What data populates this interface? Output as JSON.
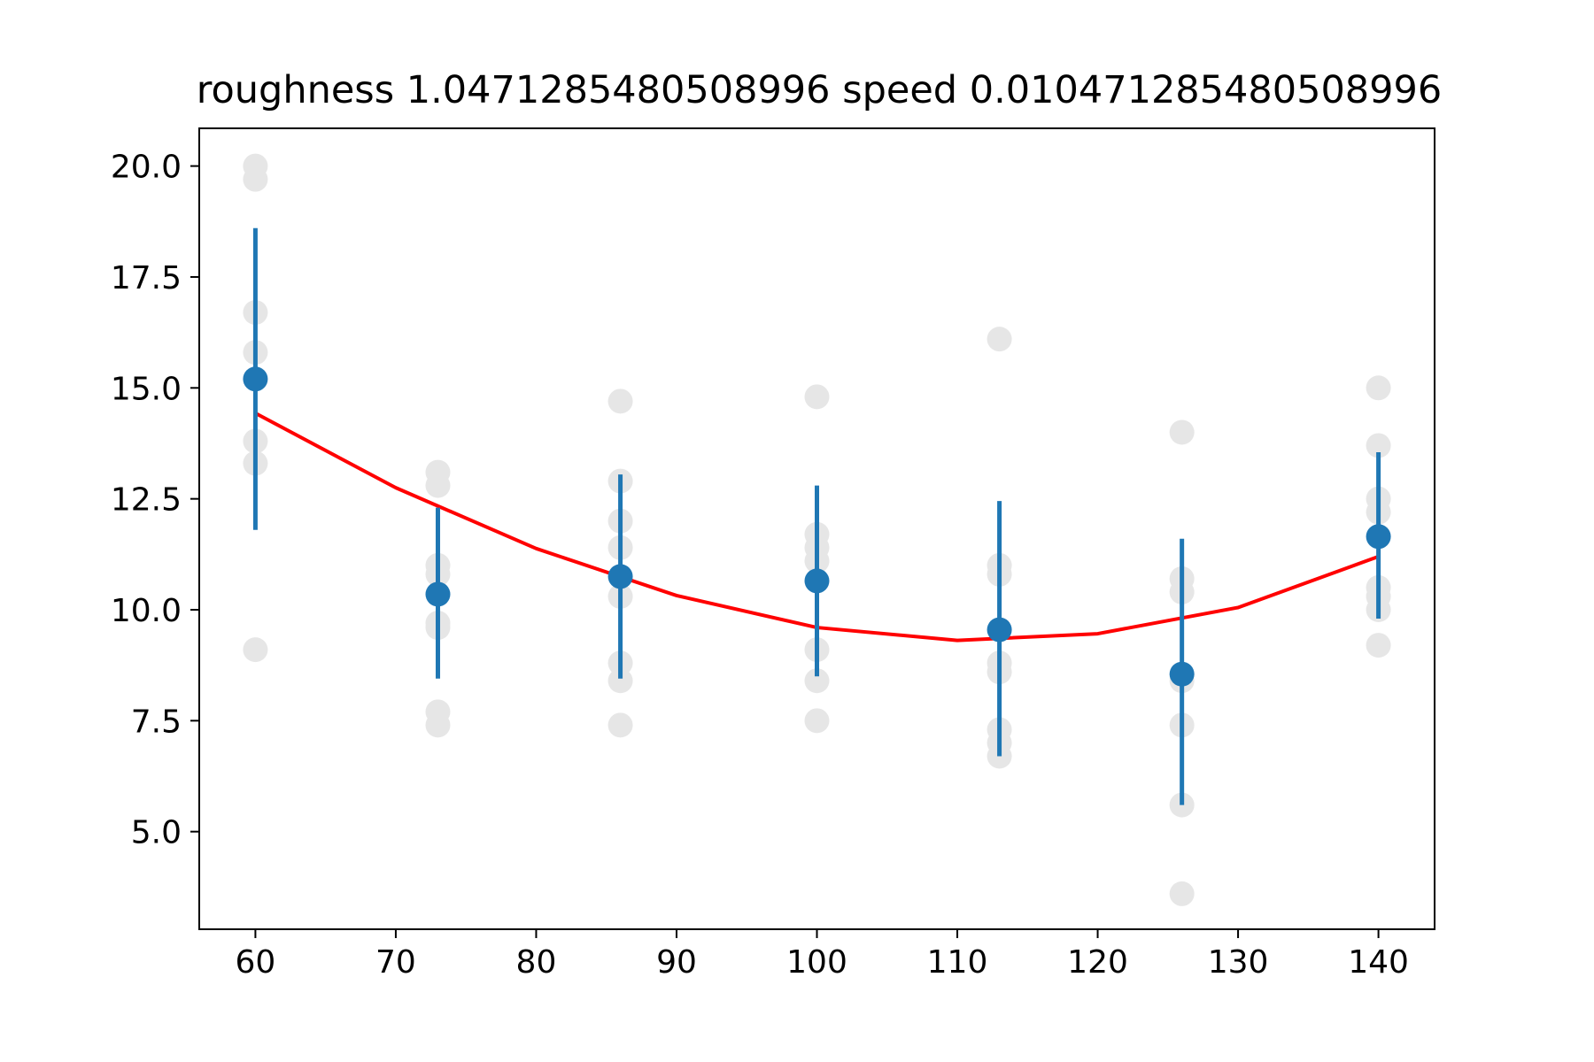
{
  "chart_data": {
    "type": "scatter",
    "title": "roughness 1.0471285480508996 speed 0.010471285480508996",
    "xlabel": "",
    "ylabel": "",
    "xlim": [
      56,
      144
    ],
    "ylim": [
      2.8,
      20.85
    ],
    "grid": false,
    "x_ticks": [
      60,
      70,
      80,
      90,
      100,
      110,
      120,
      130,
      140
    ],
    "x_tick_labels": [
      "60",
      "70",
      "80",
      "90",
      "100",
      "110",
      "120",
      "130",
      "140"
    ],
    "y_ticks": [
      5.0,
      7.5,
      10.0,
      12.5,
      15.0,
      17.5,
      20.0
    ],
    "y_tick_labels": [
      "5.0",
      "7.5",
      "10.0",
      "12.5",
      "15.0",
      "17.5",
      "20.0"
    ],
    "raw_points": {
      "color": "#e6e6e6",
      "groups": [
        {
          "x": 60,
          "y": [
            20.0,
            19.7,
            16.7,
            15.8,
            13.8,
            13.3,
            9.1
          ]
        },
        {
          "x": 73,
          "y": [
            13.1,
            12.8,
            11.0,
            10.8,
            9.7,
            9.6,
            7.7,
            7.4
          ]
        },
        {
          "x": 86,
          "y": [
            14.7,
            12.9,
            12.0,
            11.4,
            10.3,
            8.8,
            8.4,
            7.4
          ]
        },
        {
          "x": 100,
          "y": [
            14.8,
            11.7,
            11.4,
            11.1,
            9.1,
            8.4,
            7.5
          ]
        },
        {
          "x": 113,
          "y": [
            16.1,
            11.0,
            10.8,
            8.8,
            8.6,
            7.3,
            7.0,
            6.7
          ]
        },
        {
          "x": 126,
          "y": [
            14.0,
            10.7,
            10.4,
            8.4,
            7.4,
            5.6,
            3.6
          ]
        },
        {
          "x": 140,
          "y": [
            15.0,
            13.7,
            12.5,
            12.2,
            10.5,
            10.3,
            10.0,
            9.2
          ]
        }
      ]
    },
    "means": {
      "color": "#1f77b4",
      "x": [
        60,
        73,
        86,
        100,
        113,
        126,
        140
      ],
      "y": [
        15.2,
        10.35,
        10.75,
        10.65,
        9.55,
        8.55,
        11.65
      ],
      "err_low": [
        11.8,
        8.45,
        8.45,
        8.5,
        6.7,
        5.6,
        9.8
      ],
      "err_high": [
        18.6,
        12.3,
        13.05,
        12.8,
        12.45,
        11.6,
        13.55
      ]
    },
    "fit_curve": {
      "color": "#ff0000",
      "x": [
        60,
        70,
        80,
        90,
        100,
        110,
        120,
        130,
        140
      ],
      "y": [
        14.43,
        12.75,
        11.38,
        10.32,
        9.6,
        9.31,
        9.46,
        10.05,
        11.2
      ]
    }
  }
}
